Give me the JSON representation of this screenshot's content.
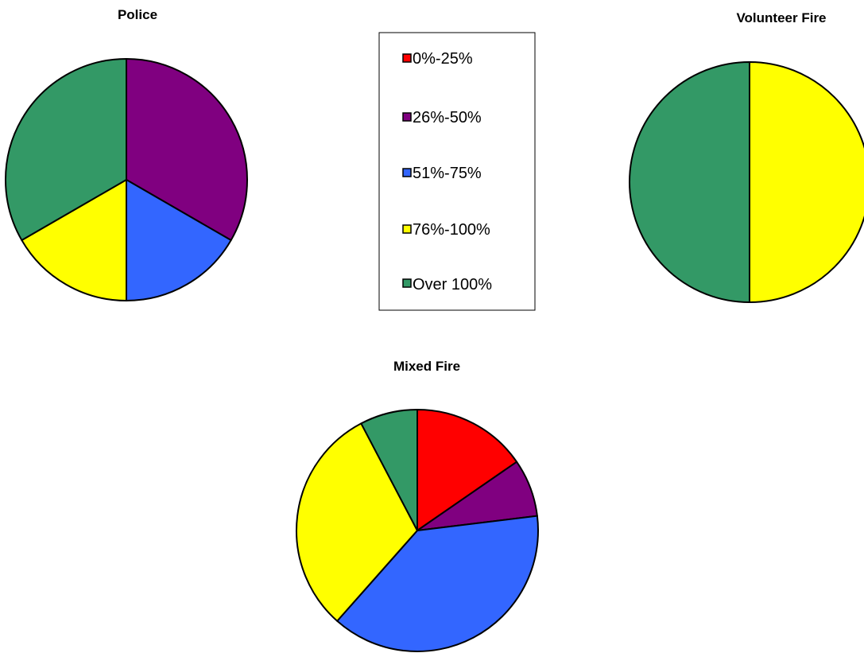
{
  "chart_data": [
    {
      "type": "pie",
      "title": "Police",
      "categories": [
        "0%-25%",
        "26%-50%",
        "51%-75%",
        "76%-100%",
        "Over 100%"
      ],
      "values": [
        0,
        2,
        1,
        1,
        2
      ]
    },
    {
      "type": "pie",
      "title": "Volunteer Fire",
      "categories": [
        "0%-25%",
        "26%-50%",
        "51%-75%",
        "76%-100%",
        "Over 100%"
      ],
      "values": [
        0,
        0,
        0,
        1,
        1
      ]
    },
    {
      "type": "pie",
      "title": "Mixed Fire",
      "categories": [
        "0%-25%",
        "26%-50%",
        "51%-75%",
        "76%-100%",
        "Over 100%"
      ],
      "values": [
        2,
        1,
        5,
        4,
        1
      ]
    }
  ],
  "legend": {
    "placement": "center",
    "items": [
      {
        "label": "0%-25%",
        "color": "#ff0000"
      },
      {
        "label": "26%-50%",
        "color": "#800080"
      },
      {
        "label": "51%-75%",
        "color": "#3366ff"
      },
      {
        "label": "76%-100%",
        "color": "#ffff00"
      },
      {
        "label": "Over 100%",
        "color": "#339966"
      }
    ]
  }
}
